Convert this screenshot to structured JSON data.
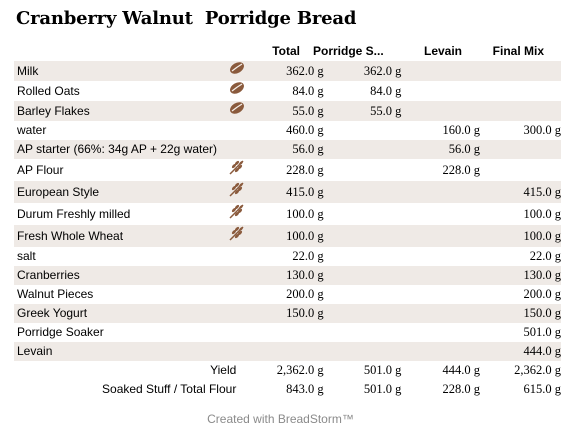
{
  "title": "Cranberry Walnut  Porridge Bread",
  "columns": [
    "Total",
    "Porridge S...",
    "Levain",
    "Final Mix"
  ],
  "rows": [
    {
      "name": "Milk",
      "icon": "seed-icon",
      "total": "362.0 g",
      "porridge": "362.0 g",
      "levain": "",
      "final": ""
    },
    {
      "name": "Rolled Oats",
      "icon": "seed-icon",
      "total": "84.0 g",
      "porridge": "84.0 g",
      "levain": "",
      "final": ""
    },
    {
      "name": "Barley Flakes",
      "icon": "seed-icon",
      "total": "55.0 g",
      "porridge": "55.0 g",
      "levain": "",
      "final": ""
    },
    {
      "name": "water",
      "icon": "",
      "total": "460.0 g",
      "porridge": "",
      "levain": "160.0 g",
      "final": "300.0 g"
    },
    {
      "name": "AP starter (66%: 34g AP + 22g water)",
      "icon": "",
      "total": "56.0 g",
      "porridge": "",
      "levain": "56.0 g",
      "final": ""
    },
    {
      "name": "AP Flour",
      "icon": "wheat-icon",
      "total": "228.0 g",
      "porridge": "",
      "levain": "228.0 g",
      "final": ""
    },
    {
      "name": "European Style",
      "icon": "wheat-icon",
      "total": "415.0 g",
      "porridge": "",
      "levain": "",
      "final": "415.0 g"
    },
    {
      "name": "Durum Freshly milled",
      "icon": "wheat-icon",
      "total": "100.0 g",
      "porridge": "",
      "levain": "",
      "final": "100.0 g"
    },
    {
      "name": "Fresh Whole Wheat",
      "icon": "wheat-icon",
      "total": "100.0 g",
      "porridge": "",
      "levain": "",
      "final": "100.0 g"
    },
    {
      "name": "salt",
      "icon": "",
      "total": "22.0 g",
      "porridge": "",
      "levain": "",
      "final": "22.0 g"
    },
    {
      "name": "Cranberries",
      "icon": "",
      "total": "130.0 g",
      "porridge": "",
      "levain": "",
      "final": "130.0 g"
    },
    {
      "name": "Walnut Pieces",
      "icon": "",
      "total": "200.0 g",
      "porridge": "",
      "levain": "",
      "final": "200.0 g"
    },
    {
      "name": "Greek Yogurt",
      "icon": "",
      "total": "150.0 g",
      "porridge": "",
      "levain": "",
      "final": "150.0 g"
    },
    {
      "name": "Porridge Soaker",
      "icon": "",
      "total": "",
      "porridge": "",
      "levain": "",
      "final": "501.0 g"
    },
    {
      "name": "Levain",
      "icon": "",
      "total": "",
      "porridge": "",
      "levain": "",
      "final": "444.0 g"
    }
  ],
  "summary": [
    {
      "label": "Yield",
      "total": "2,362.0 g",
      "porridge": "501.0 g",
      "levain": "444.0 g",
      "final": "2,362.0 g"
    },
    {
      "label": "Soaked Stuff / Total Flour",
      "total": "843.0 g",
      "porridge": "501.0 g",
      "levain": "228.0 g",
      "final": "615.0 g"
    }
  ],
  "footer": "Created with BreadStorm™",
  "colors": {
    "row_alt": "#efeae6",
    "icon": "#8a5a3c",
    "footer_text": "#8a8a8a"
  }
}
